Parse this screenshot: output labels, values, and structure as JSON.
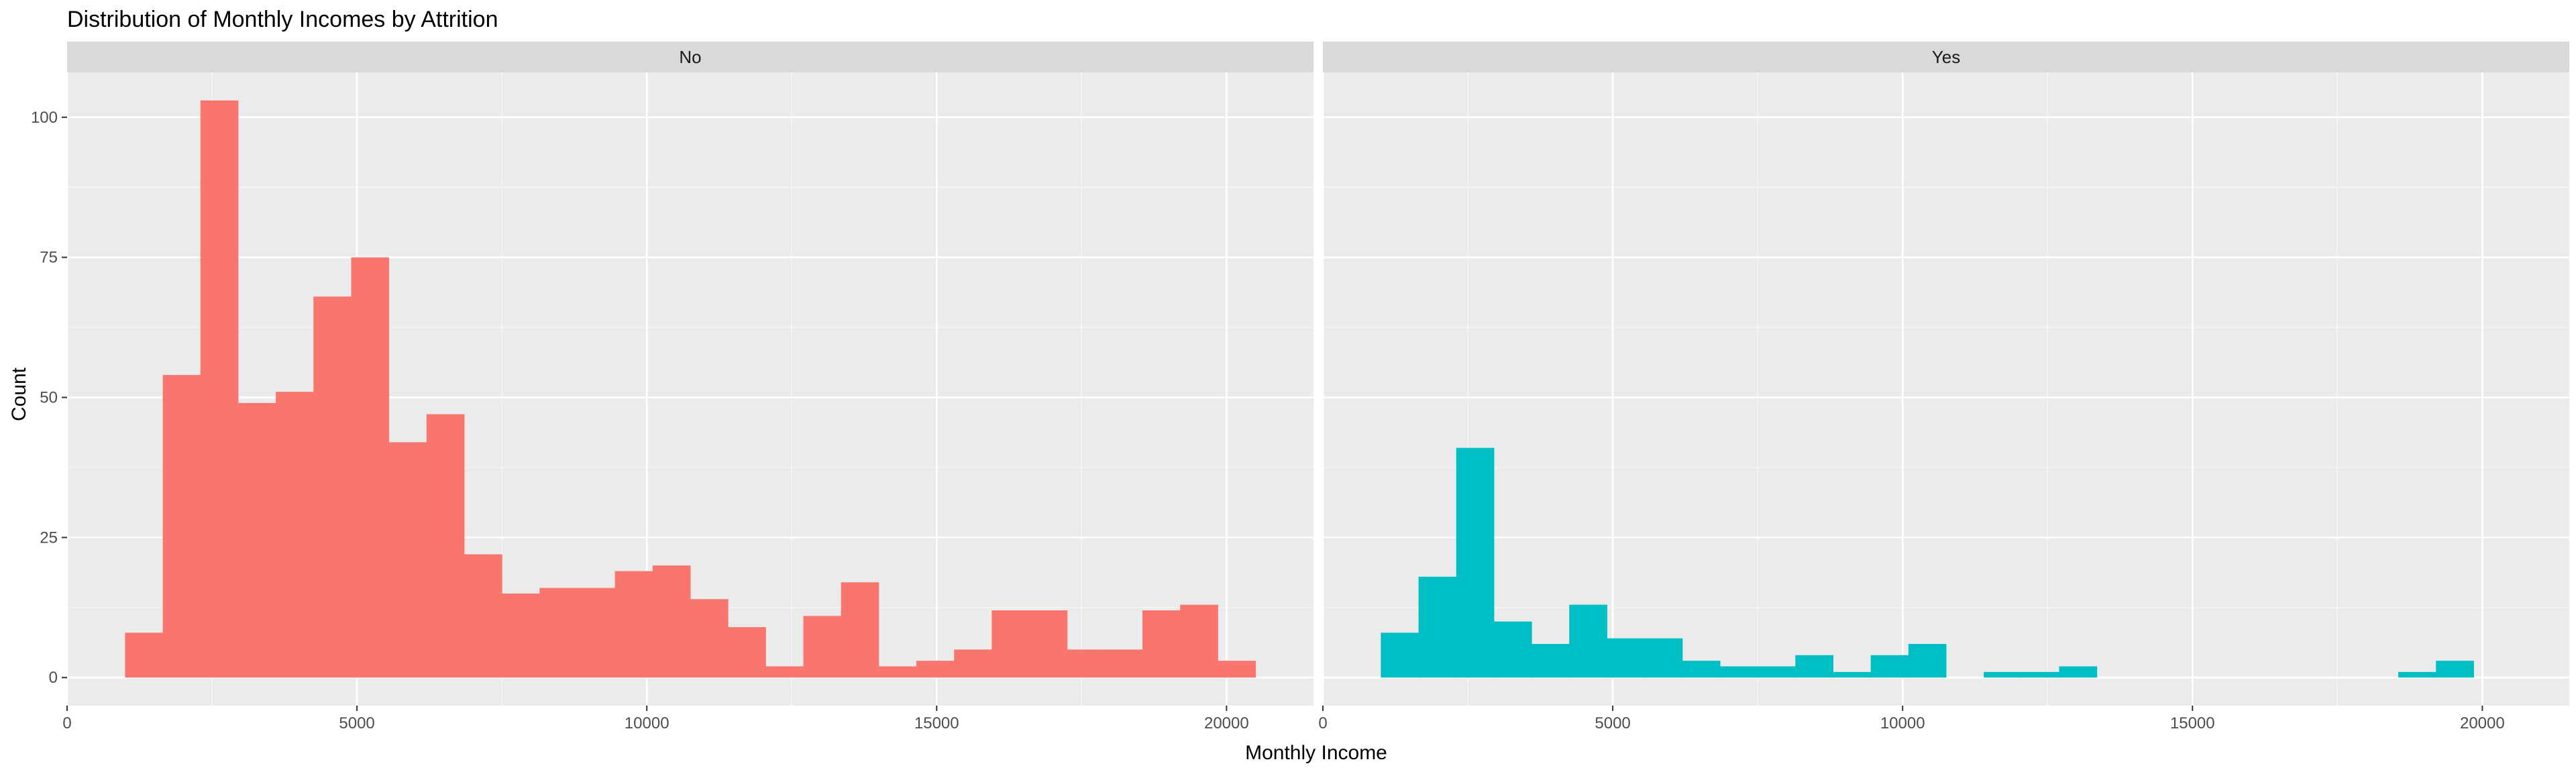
{
  "chart_data": {
    "type": "bar",
    "title": "Distribution of Monthly Incomes by Attrition",
    "xlabel": "Monthly Income",
    "ylabel": "Count",
    "xlim": [
      0,
      21500
    ],
    "ylim": [
      -5,
      108
    ],
    "x_ticks": [
      0,
      5000,
      10000,
      15000,
      20000
    ],
    "y_ticks": [
      0,
      25,
      50,
      75,
      100
    ],
    "grid": true,
    "legend": "none",
    "bin_start": 1000,
    "bin_width": 650,
    "panels": [
      {
        "name": "No",
        "color": "#F8766D",
        "counts": [
          8,
          54,
          103,
          49,
          51,
          68,
          75,
          42,
          47,
          22,
          15,
          16,
          16,
          19,
          20,
          14,
          9,
          2,
          11,
          17,
          2,
          3,
          5,
          12,
          12,
          5,
          5,
          12,
          13,
          3
        ]
      },
      {
        "name": "Yes",
        "color": "#00BFC4",
        "counts": [
          8,
          18,
          41,
          10,
          6,
          13,
          7,
          7,
          3,
          2,
          2,
          4,
          1,
          4,
          6,
          0,
          1,
          1,
          2,
          0,
          0,
          0,
          0,
          0,
          0,
          0,
          0,
          1,
          3
        ]
      }
    ]
  },
  "colors": {
    "panel_background": "#EBEBEB",
    "strip_background": "#D9D9D9",
    "grid_major": "#FFFFFF",
    "axis_text": "#4D4D4D"
  }
}
